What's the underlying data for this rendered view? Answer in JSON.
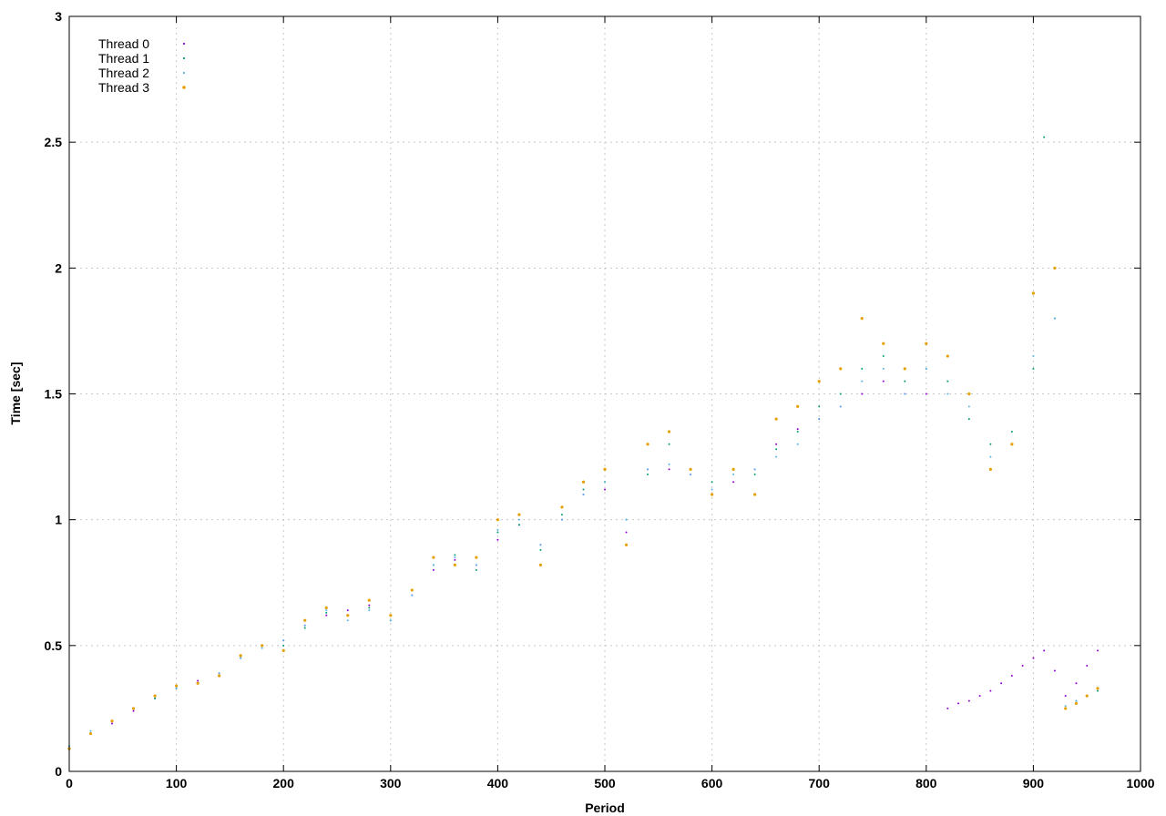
{
  "chart_data": {
    "type": "scatter",
    "title": "",
    "xlabel": "Period",
    "ylabel": "Time [sec]",
    "xlim": [
      0,
      1000
    ],
    "ylim": [
      0,
      3
    ],
    "grid": true,
    "legend_position": "top-left",
    "x_ticks": [
      "0",
      "100",
      "200",
      "300",
      "400",
      "500",
      "600",
      "700",
      "800",
      "900",
      "1000"
    ],
    "y_ticks": [
      "0",
      "0.5",
      "1",
      "1.5",
      "2",
      "2.5",
      "3"
    ],
    "series": [
      {
        "name": "Thread 0",
        "color": "#9400d3",
        "x": [
          0,
          20,
          40,
          60,
          80,
          100,
          120,
          140,
          160,
          180,
          200,
          220,
          240,
          260,
          280,
          300,
          320,
          340,
          360,
          380,
          400,
          420,
          440,
          460,
          480,
          500,
          520,
          540,
          560,
          580,
          600,
          620,
          640,
          660,
          680,
          700,
          720,
          740,
          760,
          780,
          800,
          820,
          830,
          840,
          850,
          860,
          870,
          880,
          890,
          900,
          910,
          920,
          930,
          940,
          950,
          960
        ],
        "y": [
          0.09,
          0.15,
          0.19,
          0.24,
          0.29,
          0.33,
          0.36,
          0.39,
          0.45,
          0.5,
          0.52,
          0.58,
          0.62,
          0.64,
          0.66,
          0.62,
          0.7,
          0.8,
          0.84,
          0.82,
          0.92,
          0.98,
          0.9,
          1.0,
          1.1,
          1.12,
          0.95,
          1.2,
          1.2,
          1.18,
          1.1,
          1.15,
          1.2,
          1.3,
          1.36,
          1.4,
          1.45,
          1.5,
          1.55,
          1.5,
          1.5,
          0.25,
          0.27,
          0.28,
          0.3,
          0.32,
          0.35,
          0.38,
          0.42,
          0.45,
          0.48,
          0.4,
          0.3,
          0.35,
          0.42,
          0.48
        ]
      },
      {
        "name": "Thread 1",
        "color": "#009e73",
        "x": [
          0,
          20,
          40,
          60,
          80,
          100,
          120,
          140,
          160,
          180,
          200,
          220,
          240,
          260,
          280,
          300,
          320,
          340,
          360,
          380,
          400,
          420,
          440,
          460,
          480,
          500,
          520,
          540,
          560,
          580,
          600,
          620,
          640,
          660,
          680,
          700,
          720,
          740,
          760,
          780,
          800,
          820,
          840,
          860,
          880,
          900,
          910,
          920,
          930,
          940,
          950,
          960
        ],
        "y": [
          0.1,
          0.15,
          0.2,
          0.25,
          0.29,
          0.33,
          0.35,
          0.38,
          0.46,
          0.5,
          0.5,
          0.57,
          0.63,
          0.62,
          0.65,
          0.6,
          0.72,
          0.82,
          0.86,
          0.8,
          0.95,
          0.98,
          0.88,
          1.02,
          1.12,
          1.15,
          1.0,
          1.18,
          1.3,
          1.2,
          1.15,
          1.2,
          1.18,
          1.28,
          1.35,
          1.45,
          1.5,
          1.6,
          1.65,
          1.55,
          1.6,
          1.55,
          1.4,
          1.3,
          1.35,
          1.6,
          2.52,
          1.8,
          0.25,
          0.28,
          0.3,
          0.32
        ]
      },
      {
        "name": "Thread 2",
        "color": "#56b4e9",
        "x": [
          0,
          20,
          40,
          60,
          80,
          100,
          120,
          140,
          160,
          180,
          200,
          220,
          240,
          260,
          280,
          300,
          320,
          340,
          360,
          380,
          400,
          420,
          440,
          460,
          480,
          500,
          520,
          540,
          560,
          580,
          600,
          620,
          640,
          660,
          680,
          700,
          720,
          740,
          760,
          780,
          800,
          820,
          840,
          860,
          880,
          900,
          920,
          930,
          940,
          950,
          960
        ],
        "y": [
          0.1,
          0.16,
          0.2,
          0.25,
          0.3,
          0.33,
          0.35,
          0.39,
          0.45,
          0.49,
          0.52,
          0.58,
          0.64,
          0.6,
          0.64,
          0.6,
          0.7,
          0.82,
          0.85,
          0.82,
          0.96,
          1.0,
          0.9,
          1.0,
          1.1,
          1.15,
          1.0,
          1.2,
          1.22,
          1.18,
          1.12,
          1.18,
          1.2,
          1.25,
          1.3,
          1.4,
          1.45,
          1.55,
          1.6,
          1.5,
          1.6,
          1.5,
          1.45,
          1.25,
          1.3,
          1.65,
          1.8,
          0.26,
          0.28,
          0.3,
          0.33
        ]
      },
      {
        "name": "Thread 3",
        "color": "#e69f00",
        "x": [
          0,
          20,
          40,
          60,
          80,
          100,
          120,
          140,
          160,
          180,
          200,
          220,
          240,
          260,
          280,
          300,
          320,
          340,
          360,
          380,
          400,
          420,
          440,
          460,
          480,
          500,
          520,
          540,
          560,
          580,
          600,
          620,
          640,
          660,
          680,
          700,
          720,
          740,
          760,
          780,
          800,
          820,
          840,
          860,
          880,
          900,
          920,
          930,
          940,
          950,
          960
        ],
        "y": [
          0.09,
          0.15,
          0.2,
          0.25,
          0.3,
          0.34,
          0.35,
          0.38,
          0.46,
          0.5,
          0.48,
          0.6,
          0.65,
          0.62,
          0.68,
          0.62,
          0.72,
          0.85,
          0.82,
          0.85,
          1.0,
          1.02,
          0.82,
          1.05,
          1.15,
          1.2,
          0.9,
          1.3,
          1.35,
          1.2,
          1.1,
          1.2,
          1.1,
          1.4,
          1.45,
          1.55,
          1.6,
          1.8,
          1.7,
          1.6,
          1.7,
          1.65,
          1.5,
          1.2,
          1.3,
          1.9,
          2.0,
          0.25,
          0.27,
          0.3,
          0.33
        ]
      }
    ]
  }
}
